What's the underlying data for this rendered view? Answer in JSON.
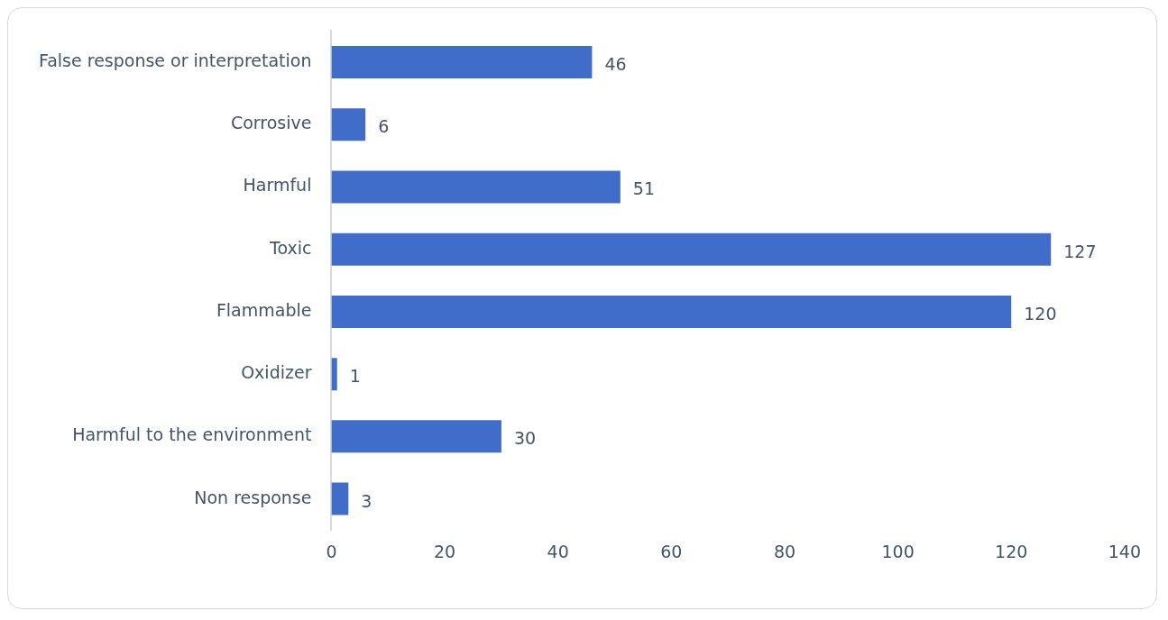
{
  "chart_data": {
    "type": "bar",
    "orientation": "horizontal",
    "categories": [
      "False response or interpretation",
      "Corrosive",
      "Harmful",
      "Toxic",
      "Flammable",
      "Oxidizer",
      "Harmful to the environment",
      "Non response"
    ],
    "values": [
      46,
      6,
      51,
      127,
      120,
      1,
      30,
      3
    ],
    "color": "#3f6dc9",
    "xlim": [
      0,
      140
    ],
    "xticks": [
      0,
      20,
      40,
      60,
      80,
      100,
      120,
      140
    ],
    "grid": false,
    "legend": false,
    "data_labels": true
  }
}
